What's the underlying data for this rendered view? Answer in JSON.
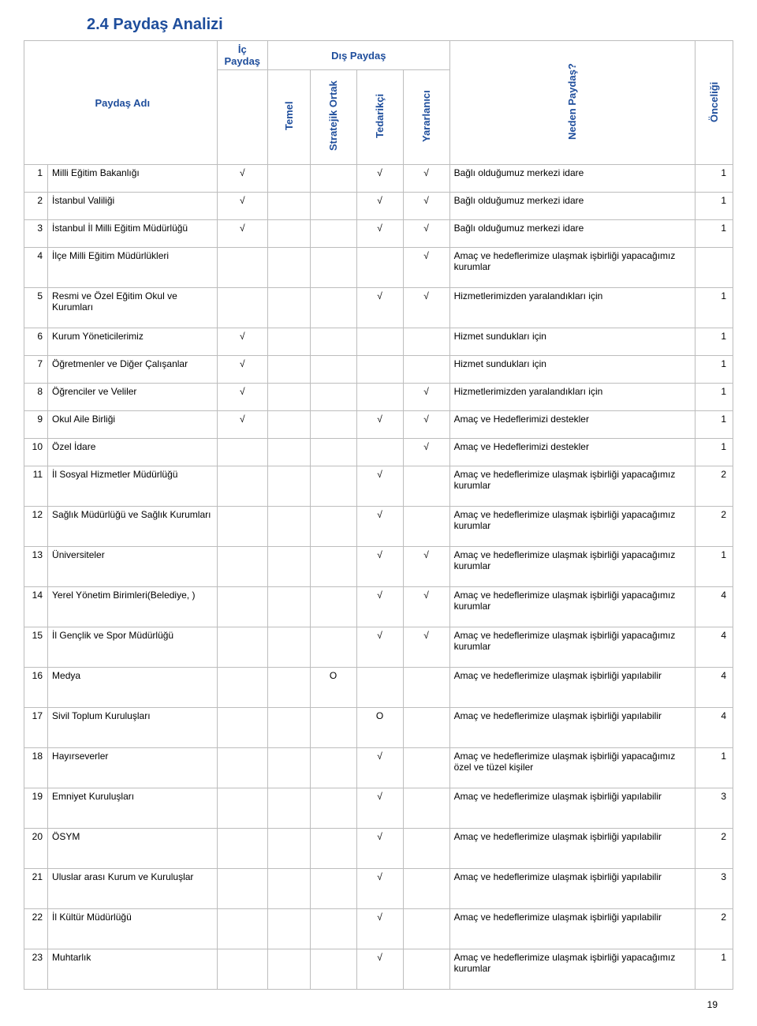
{
  "title": "2.4  Paydaş Analizi",
  "headers": {
    "paydas_adi": "Paydaş Adı",
    "ic_paydas": "İç Paydaş",
    "dis_paydas": "Dış Paydaş",
    "temel": "Temel",
    "stratejik_ortak": "Stratejik Ortak",
    "tedarikci": "Tedarikçi",
    "yararlanici": "Yararlanıcı",
    "neden_paydas": "Neden Paydaş?",
    "onceligi": "Önceliği"
  },
  "rows": [
    {
      "n": "1",
      "name": "Milli Eğitim Bakanlığı",
      "ic": "√",
      "t": "",
      "s": "",
      "td": "√",
      "y": "√",
      "neden": "Bağlı olduğumuz merkezi idare",
      "onc": "1"
    },
    {
      "n": "2",
      "name": "İstanbul Valiliği",
      "ic": "√",
      "t": "",
      "s": "",
      "td": "√",
      "y": "√",
      "neden": "Bağlı olduğumuz merkezi idare",
      "onc": "1"
    },
    {
      "n": "3",
      "name": "İstanbul İl Milli Eğitim Müdürlüğü",
      "ic": "√",
      "t": "",
      "s": "",
      "td": "√",
      "y": "√",
      "neden": "Bağlı olduğumuz merkezi idare",
      "onc": "1"
    },
    {
      "n": "4",
      "name": "İlçe Milli Eğitim Müdürlükleri",
      "ic": "",
      "t": "",
      "s": "",
      "td": "",
      "y": "√",
      "neden": "Amaç ve hedeflerimize ulaşmak işbirliği yapacağımız kurumlar",
      "onc": ""
    },
    {
      "n": "5",
      "name": "Resmi ve Özel Eğitim Okul ve Kurumları",
      "ic": "",
      "t": "",
      "s": "",
      "td": "√",
      "y": "√",
      "neden": "Hizmetlerimizden yaralandıkları için",
      "onc": "1"
    },
    {
      "n": "6",
      "name": "Kurum Yöneticilerimiz",
      "ic": "√",
      "t": "",
      "s": "",
      "td": "",
      "y": "",
      "neden": "Hizmet sundukları için",
      "onc": "1"
    },
    {
      "n": "7",
      "name": "Öğretmenler ve Diğer Çalışanlar",
      "ic": "√",
      "t": "",
      "s": "",
      "td": "",
      "y": "",
      "neden": "Hizmet sundukları için",
      "onc": "1"
    },
    {
      "n": "8",
      "name": "Öğrenciler ve Veliler",
      "ic": "√",
      "t": "",
      "s": "",
      "td": "",
      "y": "√",
      "neden": "Hizmetlerimizden yaralandıkları için",
      "onc": "1"
    },
    {
      "n": "9",
      "name": "Okul Aile Birliği",
      "ic": "√",
      "t": "",
      "s": "",
      "td": "√",
      "y": "√",
      "neden": "Amaç ve Hedeflerimizi destekler",
      "onc": "1"
    },
    {
      "n": "10",
      "name": "Özel İdare",
      "ic": "",
      "t": "",
      "s": "",
      "td": "",
      "y": "√",
      "neden": "Amaç ve Hedeflerimizi destekler",
      "onc": "1"
    },
    {
      "n": "11",
      "name": "İl Sosyal Hizmetler Müdürlüğü",
      "ic": "",
      "t": "",
      "s": "",
      "td": "√",
      "y": "",
      "neden": "Amaç ve hedeflerimize ulaşmak işbirliği yapacağımız kurumlar",
      "onc": "2"
    },
    {
      "n": "12",
      "name": "Sağlık Müdürlüğü ve Sağlık Kurumları",
      "ic": "",
      "t": "",
      "s": "",
      "td": "√",
      "y": "",
      "neden": "Amaç ve hedeflerimize ulaşmak işbirliği yapacağımız kurumlar",
      "onc": "2"
    },
    {
      "n": "13",
      "name": "Üniversiteler",
      "ic": "",
      "t": "",
      "s": "",
      "td": "√",
      "y": "√",
      "neden": "Amaç ve hedeflerimize ulaşmak işbirliği yapacağımız kurumlar",
      "onc": "1"
    },
    {
      "n": "14",
      "name": "Yerel Yönetim Birimleri(Belediye, )",
      "ic": "",
      "t": "",
      "s": "",
      "td": "√",
      "y": "√",
      "neden": "Amaç ve hedeflerimize ulaşmak işbirliği yapacağımız kurumlar",
      "onc": "4"
    },
    {
      "n": "15",
      "name": "İl Gençlik ve Spor Müdürlüğü",
      "ic": "",
      "t": "",
      "s": "",
      "td": "√",
      "y": "√",
      "neden": "Amaç ve hedeflerimize ulaşmak işbirliği yapacağımız kurumlar",
      "onc": "4"
    },
    {
      "n": "16",
      "name": "Medya",
      "ic": "",
      "t": "",
      "s": "O",
      "td": "",
      "y": "",
      "neden": "Amaç ve hedeflerimize ulaşmak işbirliği yapılabilir",
      "onc": "4"
    },
    {
      "n": "17",
      "name": "Sivil Toplum Kuruluşları",
      "ic": "",
      "t": "",
      "s": "",
      "td": "O",
      "y": "",
      "neden": "Amaç ve hedeflerimize ulaşmak işbirliği yapılabilir",
      "onc": "4"
    },
    {
      "n": "18",
      "name": "Hayırseverler",
      "ic": "",
      "t": "",
      "s": "",
      "td": "√",
      "y": "",
      "neden": "Amaç ve hedeflerimize ulaşmak işbirliği yapacağımız özel ve tüzel kişiler",
      "onc": "1"
    },
    {
      "n": "19",
      "name": "Emniyet Kuruluşları",
      "ic": "",
      "t": "",
      "s": "",
      "td": "√",
      "y": "",
      "neden": "Amaç ve hedeflerimize ulaşmak işbirliği yapılabilir",
      "onc": "3"
    },
    {
      "n": "20",
      "name": "ÖSYM",
      "ic": "",
      "t": "",
      "s": "",
      "td": "√",
      "y": "",
      "neden": "Amaç ve hedeflerimize ulaşmak işbirliği yapılabilir",
      "onc": "2"
    },
    {
      "n": "21",
      "name": "Uluslar arası Kurum ve Kuruluşlar",
      "ic": "",
      "t": "",
      "s": "",
      "td": "√",
      "y": "",
      "neden": "Amaç ve hedeflerimize ulaşmak işbirliği yapılabilir",
      "onc": "3"
    },
    {
      "n": "22",
      "name": "İl Kültür Müdürlüğü",
      "ic": "",
      "t": "",
      "s": "",
      "td": "√",
      "y": "",
      "neden": "Amaç ve hedeflerimize ulaşmak işbirliği yapılabilir",
      "onc": "2"
    },
    {
      "n": "23",
      "name": "Muhtarlık",
      "ic": "",
      "t": "",
      "s": "",
      "td": "√",
      "y": "",
      "neden": "Amaç ve hedeflerimize ulaşmak işbirliği yapacağımız kurumlar",
      "onc": "1"
    }
  ],
  "page_number": "19",
  "tall_rows": [
    "4",
    "5",
    "11",
    "12",
    "13",
    "14",
    "15",
    "16",
    "17",
    "18",
    "19",
    "20",
    "21",
    "22",
    "23"
  ]
}
